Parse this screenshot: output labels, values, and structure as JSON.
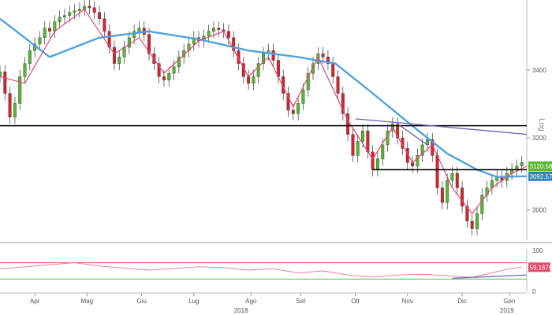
{
  "chart_data": {
    "type": "candlestick",
    "scale_label": "Log",
    "colors": {
      "up": "#55b830",
      "down": "#d8232a",
      "ma_long": "#4ea3dc",
      "ma_short": "#e2467a",
      "trendline_horizontal": "#000000",
      "trendline_diag": "#6a63b3",
      "rsi": "#e07a8c",
      "rsi_upper": "#e06060",
      "rsi_lower": "#4bbf4b",
      "last_price_bg": "#58b832",
      "ma_badge_bg": "#2f7fc2",
      "rsi_badge_bg": "#e44d6a"
    },
    "y_axis": {
      "scale": "log",
      "range": [
        2920,
        3620
      ],
      "ticks": [
        3000,
        3200,
        3400
      ]
    },
    "x_axis": {
      "ticks": [
        {
          "label": "Apr",
          "day": 14
        },
        {
          "label": "Mag",
          "day": 35
        },
        {
          "label": "Giu",
          "day": 57
        },
        {
          "label": "Lug",
          "day": 78
        },
        {
          "label": "Ago",
          "day": 101
        },
        {
          "label": "Set",
          "day": 121
        },
        {
          "label": "Ott",
          "day": 143
        },
        {
          "label": "Nov",
          "day": 164
        },
        {
          "label": "Dic",
          "day": 186
        },
        {
          "label": "Gen",
          "day": 205
        }
      ],
      "years": [
        {
          "label": "2018",
          "day": 97
        },
        {
          "label": "2019",
          "day": 204
        }
      ]
    },
    "total_days": 212,
    "series": [
      {
        "type": "ohlc",
        "points": [
          {
            "d": 0,
            "c": 3395
          },
          {
            "d": 2,
            "c": 3330
          },
          {
            "d": 4,
            "c": 3260
          },
          {
            "d": 6,
            "c": 3300
          },
          {
            "d": 8,
            "c": 3380
          },
          {
            "d": 10,
            "c": 3420
          },
          {
            "d": 12,
            "c": 3460
          },
          {
            "d": 14,
            "c": 3480
          },
          {
            "d": 16,
            "c": 3500
          },
          {
            "d": 18,
            "c": 3530
          },
          {
            "d": 20,
            "c": 3520
          },
          {
            "d": 22,
            "c": 3550
          },
          {
            "d": 24,
            "c": 3565
          },
          {
            "d": 26,
            "c": 3570
          },
          {
            "d": 28,
            "c": 3580
          },
          {
            "d": 30,
            "c": 3585
          },
          {
            "d": 32,
            "c": 3590
          },
          {
            "d": 34,
            "c": 3600
          },
          {
            "d": 36,
            "c": 3595
          },
          {
            "d": 38,
            "c": 3580
          },
          {
            "d": 40,
            "c": 3560
          },
          {
            "d": 42,
            "c": 3520
          },
          {
            "d": 44,
            "c": 3470
          },
          {
            "d": 46,
            "c": 3420
          },
          {
            "d": 48,
            "c": 3440
          },
          {
            "d": 50,
            "c": 3470
          },
          {
            "d": 52,
            "c": 3500
          },
          {
            "d": 54,
            "c": 3520
          },
          {
            "d": 56,
            "c": 3530
          },
          {
            "d": 58,
            "c": 3510
          },
          {
            "d": 60,
            "c": 3450
          },
          {
            "d": 62,
            "c": 3420
          },
          {
            "d": 64,
            "c": 3380
          },
          {
            "d": 66,
            "c": 3370
          },
          {
            "d": 68,
            "c": 3390
          },
          {
            "d": 70,
            "c": 3410
          },
          {
            "d": 72,
            "c": 3440
          },
          {
            "d": 74,
            "c": 3460
          },
          {
            "d": 76,
            "c": 3480
          },
          {
            "d": 78,
            "c": 3500
          },
          {
            "d": 80,
            "c": 3490
          },
          {
            "d": 82,
            "c": 3505
          },
          {
            "d": 84,
            "c": 3520
          },
          {
            "d": 86,
            "c": 3530
          },
          {
            "d": 88,
            "c": 3525
          },
          {
            "d": 90,
            "c": 3520
          },
          {
            "d": 92,
            "c": 3500
          },
          {
            "d": 94,
            "c": 3460
          },
          {
            "d": 96,
            "c": 3420
          },
          {
            "d": 98,
            "c": 3380
          },
          {
            "d": 100,
            "c": 3360
          },
          {
            "d": 102,
            "c": 3380
          },
          {
            "d": 104,
            "c": 3420
          },
          {
            "d": 106,
            "c": 3450
          },
          {
            "d": 108,
            "c": 3460
          },
          {
            "d": 110,
            "c": 3430
          },
          {
            "d": 112,
            "c": 3380
          },
          {
            "d": 114,
            "c": 3330
          },
          {
            "d": 116,
            "c": 3280
          },
          {
            "d": 118,
            "c": 3270
          },
          {
            "d": 120,
            "c": 3300
          },
          {
            "d": 122,
            "c": 3340
          },
          {
            "d": 124,
            "c": 3390
          },
          {
            "d": 126,
            "c": 3420
          },
          {
            "d": 128,
            "c": 3450
          },
          {
            "d": 130,
            "c": 3440
          },
          {
            "d": 132,
            "c": 3420
          },
          {
            "d": 134,
            "c": 3380
          },
          {
            "d": 136,
            "c": 3330
          },
          {
            "d": 138,
            "c": 3270
          },
          {
            "d": 140,
            "c": 3210
          },
          {
            "d": 142,
            "c": 3150
          },
          {
            "d": 144,
            "c": 3190
          },
          {
            "d": 146,
            "c": 3220
          },
          {
            "d": 148,
            "c": 3160
          },
          {
            "d": 150,
            "c": 3110
          },
          {
            "d": 152,
            "c": 3140
          },
          {
            "d": 154,
            "c": 3180
          },
          {
            "d": 156,
            "c": 3220
          },
          {
            "d": 158,
            "c": 3240
          },
          {
            "d": 160,
            "c": 3200
          },
          {
            "d": 162,
            "c": 3170
          },
          {
            "d": 164,
            "c": 3130
          },
          {
            "d": 166,
            "c": 3120
          },
          {
            "d": 168,
            "c": 3150
          },
          {
            "d": 170,
            "c": 3180
          },
          {
            "d": 172,
            "c": 3195
          },
          {
            "d": 174,
            "c": 3150
          },
          {
            "d": 176,
            "c": 3060
          },
          {
            "d": 178,
            "c": 3020
          },
          {
            "d": 180,
            "c": 3080
          },
          {
            "d": 182,
            "c": 3100
          },
          {
            "d": 184,
            "c": 3060
          },
          {
            "d": 186,
            "c": 3010
          },
          {
            "d": 188,
            "c": 2970
          },
          {
            "d": 190,
            "c": 2950
          },
          {
            "d": 192,
            "c": 2990
          },
          {
            "d": 194,
            "c": 3040
          },
          {
            "d": 196,
            "c": 3060
          },
          {
            "d": 198,
            "c": 3080
          },
          {
            "d": 200,
            "c": 3090
          },
          {
            "d": 202,
            "c": 3080
          },
          {
            "d": 204,
            "c": 3100
          },
          {
            "d": 206,
            "c": 3110
          },
          {
            "d": 208,
            "c": 3120
          },
          {
            "d": 210,
            "c": 3130
          }
        ]
      },
      {
        "type": "ma_long",
        "points": [
          [
            0,
            3560
          ],
          [
            20,
            3440
          ],
          [
            40,
            3500
          ],
          [
            60,
            3520
          ],
          [
            80,
            3495
          ],
          [
            100,
            3460
          ],
          [
            120,
            3440
          ],
          [
            135,
            3420
          ],
          [
            150,
            3330
          ],
          [
            165,
            3240
          ],
          [
            180,
            3155
          ],
          [
            192,
            3110
          ],
          [
            200,
            3090
          ],
          [
            212,
            3092
          ]
        ]
      },
      {
        "type": "ma_short",
        "points": [
          [
            0,
            3380
          ],
          [
            10,
            3360
          ],
          [
            22,
            3520
          ],
          [
            34,
            3590
          ],
          [
            46,
            3450
          ],
          [
            56,
            3500
          ],
          [
            66,
            3390
          ],
          [
            80,
            3490
          ],
          [
            90,
            3520
          ],
          [
            100,
            3380
          ],
          [
            108,
            3440
          ],
          [
            118,
            3290
          ],
          [
            128,
            3440
          ],
          [
            140,
            3250
          ],
          [
            150,
            3140
          ],
          [
            158,
            3230
          ],
          [
            166,
            3130
          ],
          [
            174,
            3180
          ],
          [
            182,
            3060
          ],
          [
            190,
            2990
          ],
          [
            198,
            3060
          ],
          [
            206,
            3100
          ],
          [
            212,
            3120
          ]
        ]
      }
    ],
    "hlines": [
      {
        "y": 3235,
        "d_from": 0,
        "d_to": 212
      },
      {
        "y": 3110,
        "d_from": 150,
        "d_to": 212
      }
    ],
    "diag_lines": [
      {
        "from": [
          143,
          3255
        ],
        "to": [
          212,
          3210
        ]
      },
      {
        "from": [
          160,
          3240
        ],
        "to": [
          172,
          3180
        ]
      }
    ],
    "badges": [
      {
        "label": "3120.5801",
        "y": 3120,
        "kind": "last"
      },
      {
        "label": "3092.5732",
        "y": 3092,
        "kind": "ma"
      }
    ],
    "rsi": {
      "upper": 70,
      "lower": 30,
      "ticks": [
        100,
        0
      ],
      "last_label": "59.1678",
      "points": [
        [
          0,
          55
        ],
        [
          10,
          60
        ],
        [
          20,
          65
        ],
        [
          30,
          70
        ],
        [
          40,
          62
        ],
        [
          50,
          57
        ],
        [
          60,
          52
        ],
        [
          70,
          56
        ],
        [
          80,
          60
        ],
        [
          90,
          58
        ],
        [
          100,
          52
        ],
        [
          110,
          55
        ],
        [
          120,
          45
        ],
        [
          130,
          50
        ],
        [
          140,
          40
        ],
        [
          150,
          35
        ],
        [
          160,
          40
        ],
        [
          170,
          42
        ],
        [
          180,
          38
        ],
        [
          190,
          34
        ],
        [
          200,
          48
        ],
        [
          205,
          55
        ],
        [
          210,
          59
        ]
      ],
      "trend_from": [
        182,
        32
      ],
      "trend_to": [
        212,
        40
      ]
    }
  }
}
